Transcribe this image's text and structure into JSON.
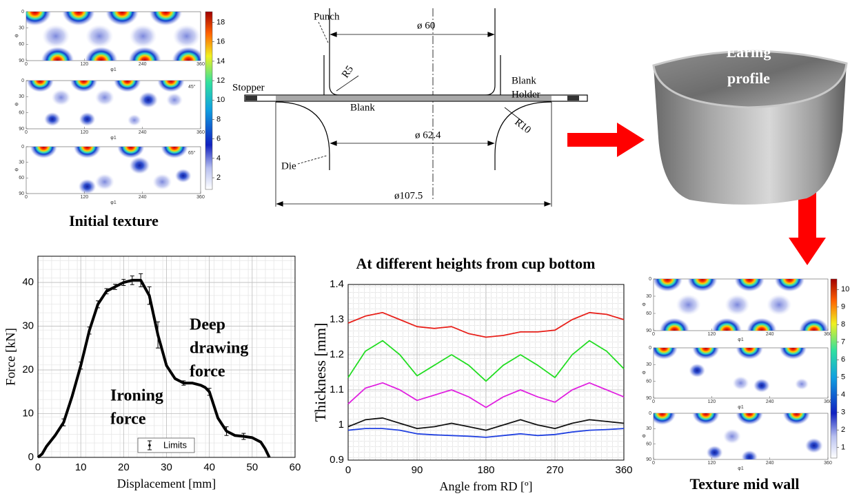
{
  "initial_texture": {
    "caption": "Initial texture",
    "y_label": "Φ",
    "x_label": "φ1",
    "ylim": [
      0,
      90
    ],
    "xlim": [
      0,
      360
    ],
    "yticks": [
      0,
      30,
      60,
      90
    ],
    "xticks": [
      0,
      120,
      240,
      360
    ],
    "panel_labels": [
      "45°",
      "65°"
    ],
    "colorbar_lim": [
      0.8,
      19.1
    ],
    "colorbar_ticks": [
      2,
      4,
      6,
      8,
      10,
      12,
      14,
      16,
      18
    ]
  },
  "diagram": {
    "punch": "Punch",
    "stopper": "Stopper",
    "blank_holder": [
      "Blank",
      "Holder"
    ],
    "blank": "Blank",
    "die": "Die",
    "r5": "R5",
    "r10": "R10",
    "d60": "ø 60",
    "d62": "ø 62.4",
    "d107": "ø107.5"
  },
  "photo": {
    "caption": [
      "Earing",
      "profile"
    ]
  },
  "mid_texture": {
    "caption": "Texture mid wall",
    "y_label": "Φ",
    "x_label": "φ1",
    "ylim": [
      0,
      90
    ],
    "xlim": [
      0,
      360
    ],
    "yticks": [
      0,
      30,
      60,
      90
    ],
    "xticks": [
      0,
      120,
      240,
      360
    ],
    "colorbar_lim": [
      0.4,
      10.6
    ],
    "colorbar_ticks": [
      1,
      2,
      3,
      4,
      5,
      6,
      7,
      8,
      9,
      10
    ]
  },
  "chart_data": [
    {
      "type": "line",
      "x_label": "Displacement [mm]",
      "y_label": "Force [kN]",
      "x": [
        0,
        1,
        2,
        4,
        6,
        8,
        10,
        12,
        14,
        16,
        18,
        20,
        22,
        24,
        26,
        28,
        30,
        32,
        34,
        36,
        38,
        39,
        40,
        42,
        44,
        46,
        48,
        50,
        52,
        53,
        54
      ],
      "values": [
        0,
        0.8,
        2.5,
        5,
        8,
        14,
        21,
        29,
        35,
        38,
        39,
        40,
        40.5,
        40.5,
        37,
        28,
        21,
        18,
        17,
        17,
        16.5,
        16,
        15,
        9,
        6,
        5,
        4.8,
        4.5,
        3.5,
        2,
        0
      ],
      "errors": [
        null,
        null,
        null,
        null,
        0.8,
        null,
        0.8,
        0.8,
        0.8,
        0.6,
        0.6,
        0.7,
        1,
        1.5,
        2,
        3,
        null,
        null,
        0.5,
        null,
        null,
        null,
        0.8,
        null,
        1,
        null,
        0.7,
        null,
        null,
        null,
        null
      ],
      "color": "#000000",
      "xlim": [
        0,
        60
      ],
      "ylim": [
        0,
        46
      ],
      "xticks": [
        0,
        10,
        20,
        30,
        40,
        50,
        60
      ],
      "yticks": [
        0,
        10,
        20,
        30,
        40
      ],
      "grid": true,
      "legend_label": "Limits",
      "annotations": [
        [
          "Deep",
          "drawing",
          "force"
        ],
        [
          "Ironing",
          "force"
        ]
      ]
    },
    {
      "type": "line",
      "title": "At different heights from cup bottom",
      "x_label": "Angle from RD [º]",
      "y_label": "Thickness [mm]",
      "x": [
        0,
        22.5,
        45,
        67.5,
        90,
        112.5,
        135,
        157.5,
        180,
        202.5,
        225,
        247.5,
        270,
        292.5,
        315,
        337.5,
        360
      ],
      "series": [
        {
          "color": "#e8201a",
          "values": [
            1.29,
            1.31,
            1.32,
            1.3,
            1.28,
            1.275,
            1.28,
            1.26,
            1.25,
            1.255,
            1.265,
            1.265,
            1.27,
            1.3,
            1.32,
            1.315,
            1.3
          ]
        },
        {
          "color": "#22dd22",
          "values": [
            1.135,
            1.21,
            1.24,
            1.2,
            1.14,
            1.17,
            1.2,
            1.17,
            1.125,
            1.17,
            1.2,
            1.17,
            1.135,
            1.2,
            1.24,
            1.21,
            1.16
          ]
        },
        {
          "color": "#e020e0",
          "values": [
            1.06,
            1.105,
            1.12,
            1.1,
            1.07,
            1.085,
            1.1,
            1.08,
            1.05,
            1.08,
            1.1,
            1.08,
            1.065,
            1.1,
            1.12,
            1.1,
            1.08
          ]
        },
        {
          "color": "#111111",
          "values": [
            0.995,
            1.015,
            1.02,
            1.005,
            0.99,
            0.995,
            1.005,
            0.995,
            0.985,
            1.0,
            1.015,
            1.0,
            0.99,
            1.005,
            1.015,
            1.01,
            1.005
          ]
        },
        {
          "color": "#2040e0",
          "values": [
            0.985,
            0.99,
            0.99,
            0.985,
            0.975,
            0.972,
            0.97,
            0.968,
            0.965,
            0.97,
            0.975,
            0.97,
            0.973,
            0.98,
            0.985,
            0.987,
            0.99
          ]
        }
      ],
      "xlim": [
        0,
        360
      ],
      "ylim": [
        0.9,
        1.4
      ],
      "xticks": [
        0,
        90,
        180,
        270,
        360
      ],
      "yticks": [
        0.9,
        1,
        1.1,
        1.2,
        1.3,
        1.4
      ],
      "grid": true
    }
  ]
}
